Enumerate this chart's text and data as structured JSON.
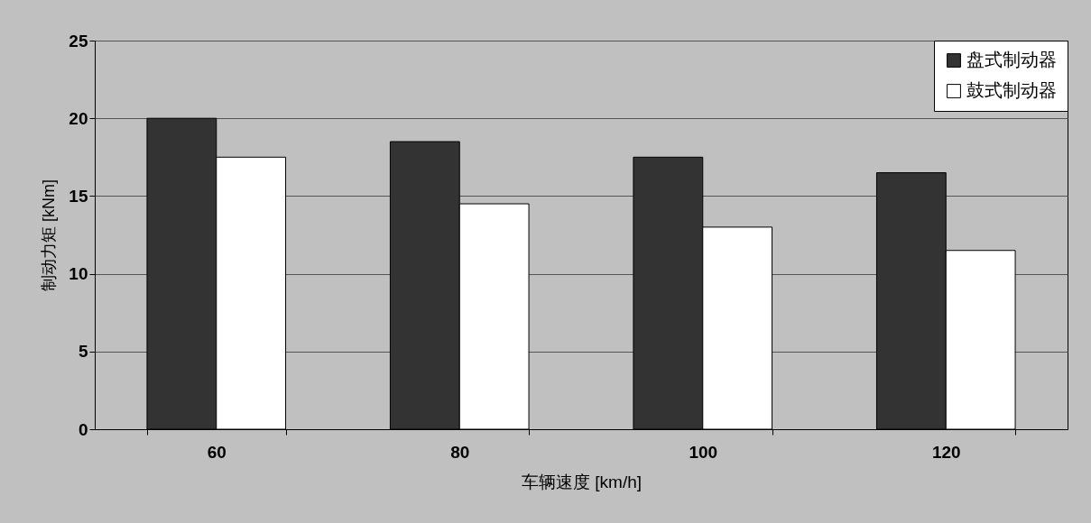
{
  "chart_data": {
    "type": "bar",
    "xlabel": "车辆速度 [km/h]",
    "ylabel": "制动力矩 [kNm]",
    "categories": [
      "60",
      "80",
      "100",
      "120"
    ],
    "series": [
      {
        "name": "盘式制动器",
        "color": "#333333",
        "values": [
          20,
          18.5,
          17.5,
          16.5
        ]
      },
      {
        "name": "鼓式制动器",
        "color": "#ffffff",
        "values": [
          17.5,
          14.5,
          13,
          11.5
        ]
      }
    ],
    "ylim": [
      0,
      25
    ],
    "yticks": [
      0,
      5,
      10,
      15,
      20,
      25
    ],
    "grid": "y",
    "legend": "top right"
  }
}
